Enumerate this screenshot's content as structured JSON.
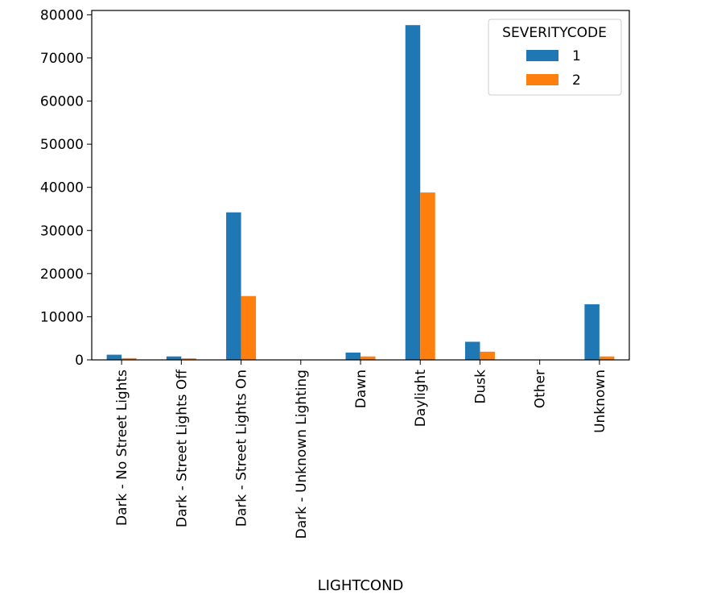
{
  "chart_data": {
    "type": "bar",
    "title": "",
    "xlabel": "LIGHTCOND",
    "ylabel": "",
    "categories": [
      "Dark - No Street Lights",
      "Dark - Street Lights Off",
      "Dark - Street Lights On",
      "Dark - Unknown Lighting",
      "Dawn",
      "Daylight",
      "Dusk",
      "Other",
      "Unknown"
    ],
    "series": [
      {
        "name": "1",
        "color": "#1f77b4",
        "values": [
          1200,
          800,
          34200,
          10,
          1700,
          77600,
          4200,
          10,
          12900
        ]
      },
      {
        "name": "2",
        "color": "#ff7f0e",
        "values": [
          400,
          350,
          14800,
          5,
          800,
          38800,
          1900,
          5,
          800
        ]
      }
    ],
    "ylim": [
      0,
      81000
    ],
    "yticks": [
      0,
      10000,
      20000,
      30000,
      40000,
      50000,
      60000,
      70000,
      80000
    ],
    "grid": false,
    "legend": {
      "title": "SEVERITYCODE",
      "placement": "top-right"
    }
  }
}
